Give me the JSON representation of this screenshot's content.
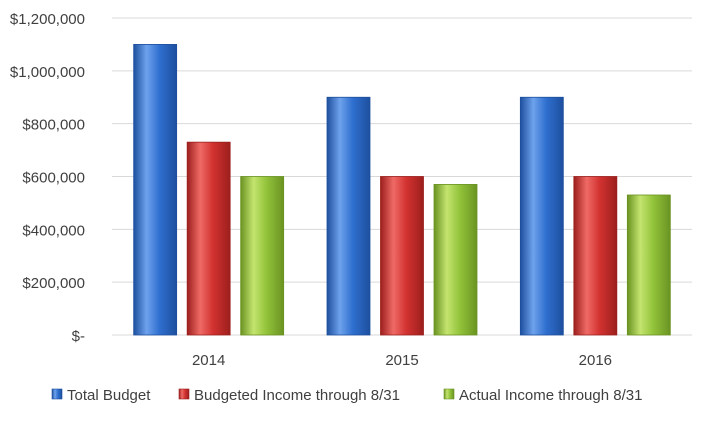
{
  "chart_data": {
    "type": "bar",
    "categories": [
      "2014",
      "2015",
      "2016"
    ],
    "series": [
      {
        "name": "Total Budget",
        "values": [
          1100000,
          900000,
          900000
        ],
        "color": "#2f6fcf",
        "color_light": "#6ea2ec",
        "color_dark": "#1d4f9e"
      },
      {
        "name": "Budgeted Income through 8/31",
        "values": [
          730000,
          600000,
          600000
        ],
        "color": "#d23230",
        "color_light": "#ef6a66",
        "color_dark": "#9c1f1d"
      },
      {
        "name": "Actual Income through 8/31",
        "values": [
          600000,
          570000,
          530000
        ],
        "color": "#92c33a",
        "color_light": "#c4e46f",
        "color_dark": "#6a9322"
      }
    ],
    "ylim": [
      0,
      1200000
    ],
    "yticks": [
      0,
      200000,
      400000,
      600000,
      800000,
      1000000,
      1200000
    ],
    "ytick_labels": [
      "$-",
      "$200,000",
      "$400,000",
      "$600,000",
      "$800,000",
      "$1,000,000",
      "$1,200,000"
    ],
    "title": "",
    "xlabel": "",
    "ylabel": "",
    "grid": true,
    "legend_position": "bottom"
  }
}
